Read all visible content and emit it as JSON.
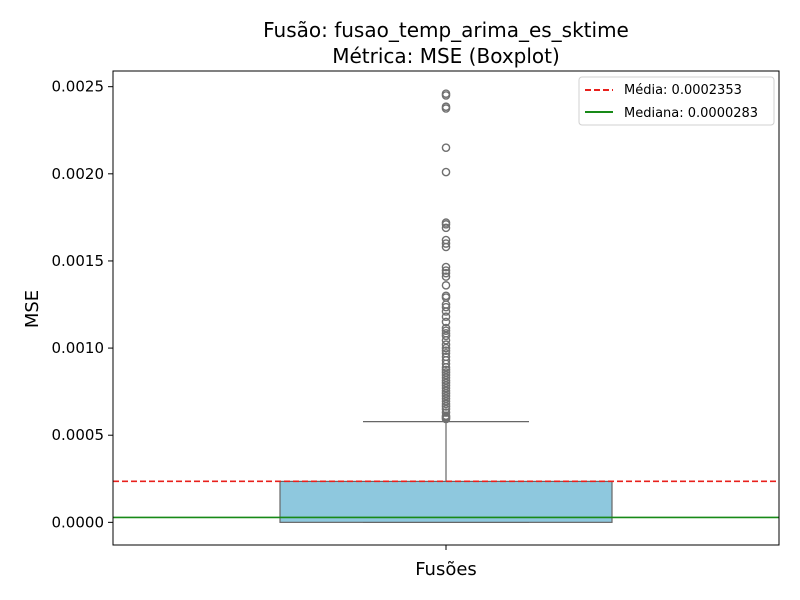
{
  "chart_data": {
    "type": "boxplot",
    "title": "Fusão: fusao_temp_arima_es_sktime",
    "subtitle": "Métrica: MSE (Boxplot)",
    "xlabel": "",
    "ylabel": "MSE",
    "categories": [
      "Fusões"
    ],
    "ylim": [
      -0.00013,
      0.00259
    ],
    "yticks": [
      0.0,
      0.0005,
      0.001,
      0.0015,
      0.002,
      0.0025
    ],
    "ytick_labels": [
      "0.0000",
      "0.0005",
      "0.0010",
      "0.0015",
      "0.0020",
      "0.0025"
    ],
    "box": {
      "q1": 0.0,
      "median": 2.83e-05,
      "q3": 0.000235,
      "whisker_low": 0.0,
      "whisker_high": 0.000578,
      "color": "#8ec8de",
      "edge_color": "#666666"
    },
    "outliers": [
      0.000593,
      0.0006,
      0.000606,
      0.000612,
      0.00063,
      0.00065,
      0.000665,
      0.00068,
      0.000695,
      0.00071,
      0.000725,
      0.00074,
      0.000755,
      0.00077,
      0.000785,
      0.0008,
      0.000815,
      0.00083,
      0.000845,
      0.00086,
      0.000875,
      0.00089,
      0.00091,
      0.00093,
      0.00095,
      0.00097,
      0.000985,
      0.001,
      0.00102,
      0.001045,
      0.00107,
      0.001085,
      0.0011,
      0.001115,
      0.00115,
      0.00118,
      0.00121,
      0.001235,
      0.00125,
      0.00129,
      0.0013,
      0.00136,
      0.00141,
      0.00143,
      0.001445,
      0.001465,
      0.00158,
      0.0016,
      0.00162,
      0.00169,
      0.00171,
      0.00172,
      0.00201,
      0.00215,
      0.002375,
      0.002385,
      0.00245,
      0.00246
    ],
    "reference_lines": [
      {
        "name": "Média: 0.0002353",
        "value": 0.0002353,
        "color": "#e8201c",
        "style": "dashed"
      },
      {
        "name": "Mediana: 0.0000283",
        "value": 2.83e-05,
        "color": "#188a18",
        "style": "solid"
      }
    ],
    "legend_position": "top-right",
    "grid": false
  }
}
